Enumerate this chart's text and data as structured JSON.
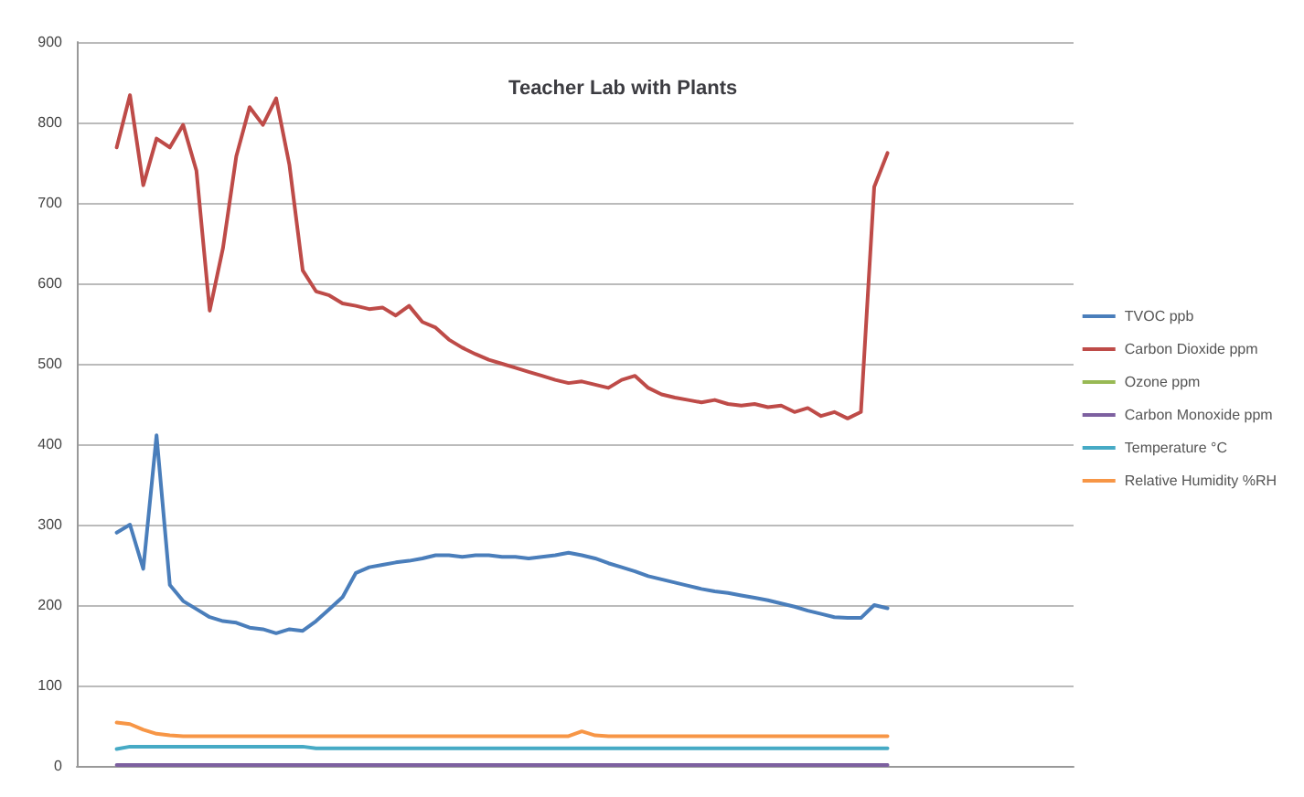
{
  "chart_data": {
    "type": "line",
    "title": "Teacher Lab with Plants",
    "categories": [
      null,
      null,
      null,
      null,
      null,
      null,
      null,
      null,
      null,
      null,
      null,
      null,
      null,
      null,
      null,
      null,
      null,
      null,
      null,
      null,
      null,
      null,
      null,
      null,
      null,
      null,
      null,
      null,
      null,
      null,
      null,
      null,
      null,
      null,
      null,
      null,
      null,
      null,
      null,
      null,
      null,
      null,
      null,
      null,
      null,
      null,
      null,
      null,
      null,
      null,
      null,
      null,
      null,
      null,
      null,
      null,
      null,
      null,
      null,
      null,
      null,
      null,
      null,
      null,
      null,
      null,
      null,
      null,
      null,
      null,
      null,
      null,
      null,
      null,
      null,
      null
    ],
    "ylim": [
      0,
      900
    ],
    "yticks": [
      0,
      100,
      200,
      300,
      400,
      500,
      600,
      700,
      800,
      900
    ],
    "grid": "y",
    "legend": "right",
    "tick_labels": "y",
    "series": [
      {
        "name": "TVOC ppb",
        "color": "#4a7ebb",
        "values": [
          null,
          null,
          null,
          290,
          300,
          245,
          411,
          225,
          205,
          195,
          185,
          180,
          178,
          172,
          170,
          165,
          170,
          168,
          180,
          195,
          210,
          240,
          247,
          250,
          253,
          255,
          258,
          262,
          262,
          260,
          262,
          262,
          260,
          260,
          258,
          260,
          262,
          265,
          262,
          258,
          252,
          247,
          242,
          236,
          232,
          228,
          224,
          220,
          217,
          215,
          212,
          209,
          206,
          202,
          198,
          193,
          189,
          185,
          184,
          184,
          200,
          196,
          null,
          null,
          null,
          null,
          null,
          null,
          null,
          null,
          null,
          null,
          null,
          null,
          null,
          null
        ]
      },
      {
        "name": "Carbon Dioxide ppm",
        "color": "#be4b48",
        "values": [
          null,
          null,
          null,
          769,
          834,
          722,
          780,
          769,
          797,
          740,
          566,
          644,
          758,
          819,
          797,
          830,
          747,
          616,
          590,
          585,
          575,
          572,
          568,
          570,
          560,
          572,
          552,
          545,
          530,
          520,
          512,
          505,
          500,
          495,
          490,
          485,
          480,
          476,
          478,
          474,
          470,
          480,
          485,
          470,
          462,
          458,
          455,
          452,
          455,
          450,
          448,
          450,
          446,
          448,
          440,
          445,
          435,
          440,
          432,
          440,
          720,
          762,
          null,
          null,
          null,
          null,
          null,
          null,
          null,
          null,
          null,
          null,
          null,
          null,
          null,
          null
        ]
      },
      {
        "name": "Ozone ppm",
        "color": "#98b954",
        "values": [
          null,
          null,
          null,
          null,
          null,
          null,
          null,
          null,
          null,
          null,
          null,
          null,
          null,
          null,
          null,
          null,
          null,
          null,
          null,
          null,
          null,
          null,
          null,
          null,
          null,
          null,
          null,
          null,
          null,
          null,
          null,
          null,
          null,
          null,
          null,
          null,
          null,
          null,
          null,
          null,
          null,
          null,
          null,
          null,
          null,
          null,
          null,
          null,
          null,
          null,
          null,
          null,
          null,
          null,
          null,
          null,
          null,
          null,
          null,
          null,
          null,
          null,
          null,
          null,
          null,
          null,
          null,
          null,
          null,
          null,
          null,
          null,
          null,
          null,
          null,
          null
        ]
      },
      {
        "name": "Carbon Monoxide ppm",
        "color": "#7d60a0",
        "values": [
          null,
          null,
          null,
          1,
          1,
          1,
          1,
          1,
          1,
          1,
          1,
          1,
          1,
          1,
          1,
          1,
          1,
          1,
          1,
          1,
          1,
          1,
          1,
          1,
          1,
          1,
          1,
          1,
          1,
          1,
          1,
          1,
          1,
          1,
          1,
          1,
          1,
          1,
          1,
          1,
          1,
          1,
          1,
          1,
          1,
          1,
          1,
          1,
          1,
          1,
          1,
          1,
          1,
          1,
          1,
          1,
          1,
          1,
          1,
          1,
          1,
          1,
          null,
          null,
          null,
          null,
          null,
          null,
          null,
          null,
          null,
          null,
          null,
          null,
          null,
          null
        ]
      },
      {
        "name": "Temperature °C",
        "color": "#46aac5",
        "values": [
          null,
          null,
          null,
          21,
          24,
          24,
          24,
          24,
          24,
          24,
          24,
          24,
          24,
          24,
          24,
          24,
          24,
          24,
          22,
          22,
          22,
          22,
          22,
          22,
          22,
          22,
          22,
          22,
          22,
          22,
          22,
          22,
          22,
          22,
          22,
          22,
          22,
          22,
          22,
          22,
          22,
          22,
          22,
          22,
          22,
          22,
          22,
          22,
          22,
          22,
          22,
          22,
          22,
          22,
          22,
          22,
          22,
          22,
          22,
          22,
          22,
          22,
          null,
          null,
          null,
          null,
          null,
          null,
          null,
          null,
          null,
          null,
          null,
          null,
          null,
          null
        ]
      },
      {
        "name": "Relative Humidity %RH",
        "color": "#f79646",
        "values": [
          null,
          null,
          null,
          54,
          52,
          45,
          40,
          38,
          37,
          37,
          37,
          37,
          37,
          37,
          37,
          37,
          37,
          37,
          37,
          37,
          37,
          37,
          37,
          37,
          37,
          37,
          37,
          37,
          37,
          37,
          37,
          37,
          37,
          37,
          37,
          37,
          37,
          37,
          43,
          38,
          37,
          37,
          37,
          37,
          37,
          37,
          37,
          37,
          37,
          37,
          37,
          37,
          37,
          37,
          37,
          37,
          37,
          37,
          37,
          37,
          37,
          37,
          null,
          null,
          null,
          null,
          null,
          null,
          null,
          null,
          null,
          null,
          null,
          null,
          null,
          null
        ]
      }
    ]
  }
}
